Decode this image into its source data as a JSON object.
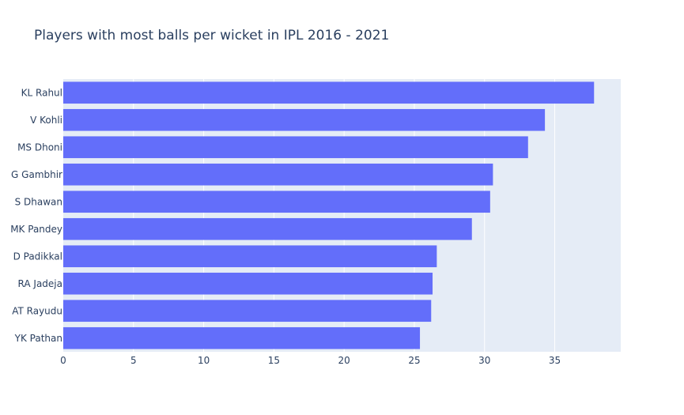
{
  "chart_data": {
    "type": "bar",
    "orientation": "horizontal",
    "title": "Players with most balls per wicket in IPL 2016 - 2021",
    "xlabel": "",
    "ylabel": "",
    "categories": [
      "KL Rahul",
      "V Kohli",
      "MS Dhoni",
      "G Gambhir",
      "S Dhawan",
      "MK Pandey",
      "D Padikkal",
      "RA Jadeja",
      "AT Rayudu",
      "YK Pathan"
    ],
    "values": [
      37.8,
      34.3,
      33.1,
      30.6,
      30.4,
      29.1,
      26.6,
      26.3,
      26.2,
      25.4
    ],
    "xlim": [
      0,
      39.7
    ],
    "xticks": [
      0,
      5,
      10,
      15,
      20,
      25,
      30,
      35
    ],
    "grid": true,
    "bar_color": "#636efa",
    "plot_bg_color": "#e5ecf6",
    "grid_color": "#ffffff"
  }
}
